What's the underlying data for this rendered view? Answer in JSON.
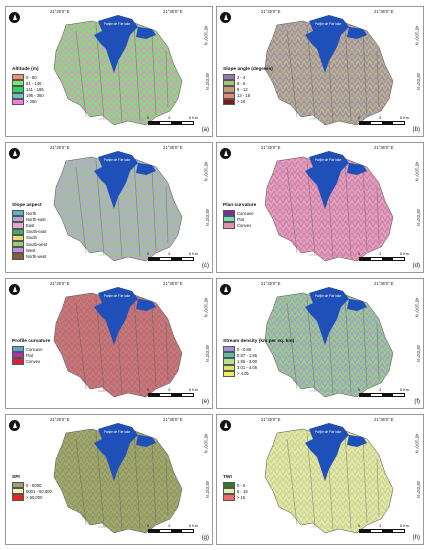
{
  "panels": [
    {
      "id": "a",
      "tag": "(a)",
      "legend_title": "Altitude (m)",
      "legend": [
        {
          "label": "0 - 80",
          "color": "#f6907a"
        },
        {
          "label": "81 - 140",
          "color": "#78ea6a"
        },
        {
          "label": "141 - 195",
          "color": "#2bd660"
        },
        {
          "label": "196 - 260",
          "color": "#6dc2c0"
        },
        {
          "label": "> 260",
          "color": "#f07ae8"
        }
      ],
      "fill_primary": "#7be26c",
      "fill_secondary": "#ef86e3"
    },
    {
      "id": "b",
      "tag": "(b)",
      "legend_title": "Slope angle (degrees)",
      "legend": [
        {
          "label": "2 - 4",
          "color": "#8e7bb0"
        },
        {
          "label": "5 - 8",
          "color": "#a3c46c"
        },
        {
          "label": "9 - 12",
          "color": "#c79a76"
        },
        {
          "label": "13 - 18",
          "color": "#e58b7b"
        },
        {
          "label": "> 18",
          "color": "#7a1a1a"
        }
      ],
      "fill_primary": "#a98fa7",
      "fill_secondary": "#b7c37f"
    },
    {
      "id": "c",
      "tag": "(c)",
      "legend_title": "Slope aspect",
      "legend": [
        {
          "label": "North",
          "color": "#55b8c7"
        },
        {
          "label": "North-east",
          "color": "#b7a3d6"
        },
        {
          "label": "East",
          "color": "#e0a9d0"
        },
        {
          "label": "South-east",
          "color": "#45a86b"
        },
        {
          "label": "South",
          "color": "#e8dd6c"
        },
        {
          "label": "South-west",
          "color": "#8fd66b"
        },
        {
          "label": "West",
          "color": "#c48de0"
        },
        {
          "label": "North-west",
          "color": "#8a5a3b"
        }
      ],
      "fill_primary": "#b9a6d8",
      "fill_secondary": "#8fd26d"
    },
    {
      "id": "d",
      "tag": "(d)",
      "legend_title": "Plan curvature",
      "legend": [
        {
          "label": "Concave",
          "color": "#7b2b9e"
        },
        {
          "label": "Flat",
          "color": "#6ee3b8"
        },
        {
          "label": "Convex",
          "color": "#e88fb0"
        }
      ],
      "fill_primary": "#e69cbc",
      "fill_secondary": "#c882a8"
    },
    {
      "id": "e",
      "tag": "(e)",
      "legend_title": "Profile curvature",
      "legend": [
        {
          "label": "Concave",
          "color": "#5aa6d1"
        },
        {
          "label": "Flat",
          "color": "#b72cae"
        },
        {
          "label": "Convex",
          "color": "#d8213b"
        }
      ],
      "fill_primary": "#c9787a",
      "fill_secondary": "#b56a70"
    },
    {
      "id": "f",
      "tag": "(f)",
      "legend_title": "Stream density (km per sq. km)",
      "legend": [
        {
          "label": "0 - 0.86",
          "color": "#9c92d6"
        },
        {
          "label": "0.87 - 1.95",
          "color": "#58c09a"
        },
        {
          "label": "1.96 - 3.00",
          "color": "#b7e08a"
        },
        {
          "label": "3.01 - 4.05",
          "color": "#d9e46a"
        },
        {
          "label": "> 4.05",
          "color": "#f2ec5a"
        }
      ],
      "fill_primary": "#95cf86",
      "fill_secondary": "#a995d4"
    },
    {
      "id": "g",
      "tag": "(g)",
      "legend_title": "SPI",
      "legend": [
        {
          "label": "0 - 5000",
          "color": "#9ba56a"
        },
        {
          "label": "5001 - 50,000",
          "color": "#f3f0b8"
        },
        {
          "label": "> 50,000",
          "color": "#e8241f"
        }
      ],
      "fill_primary": "#a1a86f",
      "fill_secondary": "#8d965f"
    },
    {
      "id": "h",
      "tag": "(h)",
      "legend_title": "TWI",
      "legend": [
        {
          "label": "0 - 5",
          "color": "#2f7a2b"
        },
        {
          "label": "6 - 15",
          "color": "#e7ecaa"
        },
        {
          "label": "> 15",
          "color": "#ee6a66"
        }
      ],
      "fill_primary": "#e1e7a8",
      "fill_secondary": "#cbd38e"
    }
  ],
  "common": {
    "coord_top_left": "21°25'0\" E",
    "coord_top_right": "21°35'0\" E",
    "coord_side_1": "45°10'0\" N",
    "coord_side_2": "45°0'0\" N",
    "scale_0": "0",
    "scale_1": "3",
    "scale_2": "6 Km",
    "lake_label": "Porţile de Fier lake",
    "lake_color": "#1f4fb8"
  }
}
